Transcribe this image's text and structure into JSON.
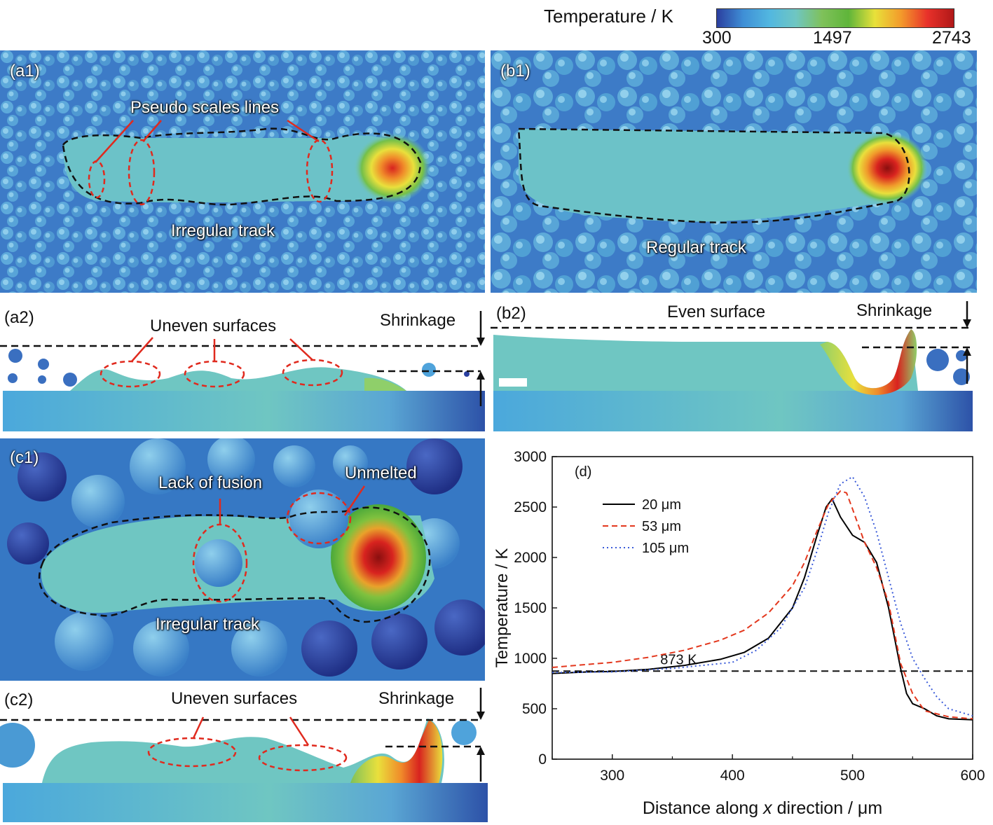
{
  "colorbar": {
    "title": "Temperature / K",
    "min_label": "300",
    "mid_label": "1497",
    "max_label": "2743",
    "colors": [
      "#2b3f9f",
      "#3f8fd6",
      "#52b7e0",
      "#6fc6c2",
      "#7fc15a",
      "#5fb53a",
      "#e8e13a",
      "#f39a2b",
      "#e8312a",
      "#b01818"
    ]
  },
  "panels": {
    "a1": {
      "id": "(a1)",
      "annotations": [
        "Pseudo scales lines",
        "Irregular track"
      ]
    },
    "b1": {
      "id": "(b1)",
      "annotations": [
        "Regular track"
      ]
    },
    "a2": {
      "id": "(a2)",
      "annotations": [
        "Uneven surfaces",
        "Shrinkage"
      ]
    },
    "b2": {
      "id": "(b2)",
      "annotations": [
        "Even surface",
        "Shrinkage"
      ]
    },
    "c1": {
      "id": "(c1)",
      "annotations": [
        "Lack of fusion",
        "Unmelted",
        "Irregular track"
      ]
    },
    "c2": {
      "id": "(c2)",
      "annotations": [
        "Uneven surfaces",
        "Shrinkage"
      ]
    }
  },
  "chart_data": {
    "type": "line",
    "panel_label": "(d)",
    "xlabel_pre": "Distance along ",
    "xlabel_var": "x",
    "xlabel_post": " direction / μm",
    "ylabel": "Temperature / K",
    "xlim": [
      250,
      600
    ],
    "ylim": [
      0,
      3000
    ],
    "xticks": [
      300,
      400,
      500,
      600
    ],
    "yticks": [
      0,
      500,
      1000,
      1500,
      2000,
      2500,
      3000
    ],
    "reference_line": {
      "y": 873,
      "label": "873 K"
    },
    "legend_position": "top-left",
    "series": [
      {
        "name": "20 μm",
        "color": "#000000",
        "dash": "solid",
        "x": [
          250,
          280,
          300,
          330,
          360,
          390,
          410,
          430,
          450,
          460,
          470,
          478,
          483,
          490,
          500,
          510,
          520,
          530,
          540,
          545,
          550,
          560,
          570,
          580,
          600
        ],
        "y": [
          850,
          865,
          870,
          890,
          930,
          990,
          1060,
          1200,
          1500,
          1800,
          2200,
          2500,
          2580,
          2400,
          2220,
          2150,
          1950,
          1500,
          900,
          650,
          550,
          500,
          430,
          400,
          390
        ]
      },
      {
        "name": "53 μm",
        "color": "#e3381e",
        "dash": "dashed",
        "x": [
          250,
          280,
          300,
          330,
          360,
          390,
          410,
          430,
          450,
          460,
          470,
          480,
          490,
          495,
          500,
          510,
          520,
          530,
          540,
          550,
          560,
          580,
          600
        ],
        "y": [
          910,
          940,
          960,
          1010,
          1080,
          1180,
          1280,
          1450,
          1720,
          1950,
          2250,
          2530,
          2660,
          2640,
          2480,
          2150,
          1900,
          1550,
          950,
          650,
          480,
          420,
          400
        ]
      },
      {
        "name": "105 μm",
        "color": "#3a5bd9",
        "dash": "dotted",
        "x": [
          250,
          300,
          350,
          400,
          420,
          440,
          460,
          470,
          480,
          490,
          500,
          510,
          520,
          530,
          540,
          550,
          560,
          570,
          580,
          600
        ],
        "y": [
          860,
          865,
          900,
          960,
          1080,
          1300,
          1700,
          2050,
          2450,
          2730,
          2800,
          2600,
          2250,
          1800,
          1350,
          1000,
          800,
          620,
          500,
          430
        ]
      }
    ]
  }
}
